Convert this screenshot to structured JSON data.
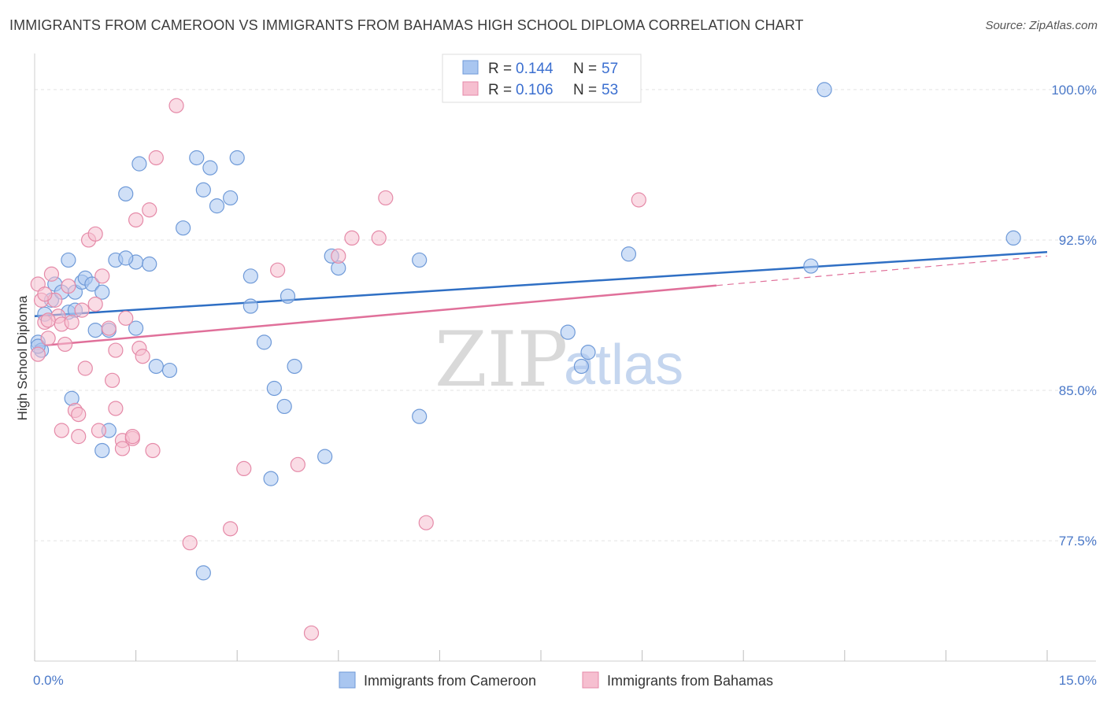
{
  "title": "IMMIGRANTS FROM CAMEROON VS IMMIGRANTS FROM BAHAMAS HIGH SCHOOL DIPLOMA CORRELATION CHART",
  "source": "Source: ZipAtlas.com",
  "watermark": {
    "zip": "ZIP",
    "atlas": "atlas"
  },
  "legend": {
    "rows": [
      {
        "r_label": "R = ",
        "r_value": "0.144",
        "n_label": "N = ",
        "n_value": "57",
        "color": "#a9c6f0",
        "stroke": "#6f9ad8"
      },
      {
        "r_label": "R = ",
        "r_value": "0.106",
        "n_label": "N = ",
        "n_value": "53",
        "color": "#f6bfd0",
        "stroke": "#e58aa8"
      }
    ]
  },
  "chart_data": {
    "type": "scatter",
    "ylabel": "High School Diploma",
    "xlabel": "",
    "xlim": [
      0.0,
      15.0
    ],
    "ylim": [
      71.5,
      101.8
    ],
    "x_tick_labels": [
      {
        "value": 0.0,
        "label": "0.0%"
      },
      {
        "value": 15.0,
        "label": "15.0%"
      }
    ],
    "y_tick_labels": [
      {
        "value": 100.0,
        "label": "100.0%"
      },
      {
        "value": 92.5,
        "label": "92.5%"
      },
      {
        "value": 85.0,
        "label": "85.0%"
      },
      {
        "value": 77.5,
        "label": "77.5%"
      }
    ],
    "series": [
      {
        "name": "Immigrants from Cameroon",
        "color": "#a9c6f0",
        "stroke": "#6f9ad8",
        "line_color": "#2f6fc4",
        "trend": {
          "x0": 0.0,
          "y0": 88.7,
          "x1": 15.0,
          "y1": 91.9,
          "dash_from": null
        },
        "points": [
          [
            0.05,
            87.4
          ],
          [
            0.1,
            87.0
          ],
          [
            0.15,
            88.8
          ],
          [
            0.25,
            89.5
          ],
          [
            0.3,
            90.3
          ],
          [
            0.4,
            89.9
          ],
          [
            0.5,
            88.9
          ],
          [
            0.6,
            89.9
          ],
          [
            0.7,
            90.4
          ],
          [
            0.75,
            90.6
          ],
          [
            0.85,
            90.3
          ],
          [
            0.55,
            84.6
          ],
          [
            0.9,
            88.0
          ],
          [
            1.0,
            89.9
          ],
          [
            0.5,
            91.5
          ],
          [
            1.1,
            83.0
          ],
          [
            1.2,
            91.5
          ],
          [
            1.5,
            88.1
          ],
          [
            1.5,
            91.4
          ],
          [
            1.35,
            94.8
          ],
          [
            1.55,
            96.3
          ],
          [
            1.7,
            91.3
          ],
          [
            2.0,
            86.0
          ],
          [
            2.2,
            93.1
          ],
          [
            2.4,
            96.6
          ],
          [
            2.5,
            95.0
          ],
          [
            2.6,
            96.1
          ],
          [
            2.7,
            94.2
          ],
          [
            2.9,
            94.6
          ],
          [
            3.0,
            96.6
          ],
          [
            3.2,
            89.2
          ],
          [
            3.2,
            90.7
          ],
          [
            3.4,
            87.4
          ],
          [
            3.55,
            85.1
          ],
          [
            3.7,
            84.2
          ],
          [
            3.75,
            89.7
          ],
          [
            3.85,
            86.2
          ],
          [
            4.3,
            81.7
          ],
          [
            4.5,
            91.1
          ],
          [
            4.4,
            91.7
          ],
          [
            5.7,
            91.5
          ],
          [
            5.7,
            83.7
          ],
          [
            1.0,
            82.0
          ],
          [
            1.35,
            91.6
          ],
          [
            1.8,
            86.2
          ],
          [
            2.5,
            75.9
          ],
          [
            3.5,
            80.6
          ],
          [
            7.9,
            87.9
          ],
          [
            8.2,
            86.9
          ],
          [
            8.8,
            91.8
          ],
          [
            8.1,
            86.2
          ],
          [
            11.5,
            91.2
          ],
          [
            11.7,
            100.0
          ],
          [
            14.5,
            92.6
          ],
          [
            0.05,
            87.2
          ],
          [
            1.1,
            88.0
          ],
          [
            0.6,
            89.0
          ]
        ]
      },
      {
        "name": "Immigrants from Bahamas",
        "color": "#f6bfd0",
        "stroke": "#e58aa8",
        "line_color": "#e0709a",
        "trend": {
          "x0": 0.0,
          "y0": 87.2,
          "x1": 15.0,
          "y1": 91.7,
          "dash_from": 10.1
        },
        "points": [
          [
            0.05,
            86.8
          ],
          [
            0.05,
            90.3
          ],
          [
            0.1,
            89.5
          ],
          [
            0.15,
            88.4
          ],
          [
            0.2,
            87.6
          ],
          [
            0.25,
            90.8
          ],
          [
            0.3,
            89.5
          ],
          [
            0.35,
            88.7
          ],
          [
            0.4,
            88.3
          ],
          [
            0.45,
            87.3
          ],
          [
            0.5,
            90.2
          ],
          [
            0.6,
            84.0
          ],
          [
            0.65,
            83.8
          ],
          [
            0.65,
            82.7
          ],
          [
            0.75,
            86.1
          ],
          [
            0.8,
            92.5
          ],
          [
            0.9,
            92.8
          ],
          [
            0.95,
            83.0
          ],
          [
            1.0,
            90.7
          ],
          [
            0.9,
            89.3
          ],
          [
            1.1,
            88.1
          ],
          [
            1.15,
            85.5
          ],
          [
            1.2,
            84.1
          ],
          [
            1.3,
            82.5
          ],
          [
            1.3,
            82.1
          ],
          [
            1.35,
            88.6
          ],
          [
            1.45,
            82.6
          ],
          [
            1.5,
            93.5
          ],
          [
            1.55,
            87.1
          ],
          [
            1.6,
            86.7
          ],
          [
            1.7,
            94.0
          ],
          [
            1.75,
            82.0
          ],
          [
            1.8,
            96.6
          ],
          [
            2.1,
            99.2
          ],
          [
            2.3,
            77.4
          ],
          [
            2.9,
            78.1
          ],
          [
            3.1,
            81.1
          ],
          [
            3.6,
            91.0
          ],
          [
            3.9,
            81.3
          ],
          [
            4.1,
            72.9
          ],
          [
            4.5,
            91.7
          ],
          [
            4.7,
            92.6
          ],
          [
            5.1,
            92.6
          ],
          [
            5.2,
            94.6
          ],
          [
            5.8,
            78.4
          ],
          [
            0.4,
            83.0
          ],
          [
            0.2,
            88.5
          ],
          [
            0.55,
            88.4
          ],
          [
            0.7,
            89.0
          ],
          [
            1.45,
            82.7
          ],
          [
            8.95,
            94.5
          ],
          [
            0.15,
            89.8
          ],
          [
            1.2,
            87.0
          ]
        ]
      }
    ],
    "grid": true,
    "legend_placement": "top-center"
  }
}
